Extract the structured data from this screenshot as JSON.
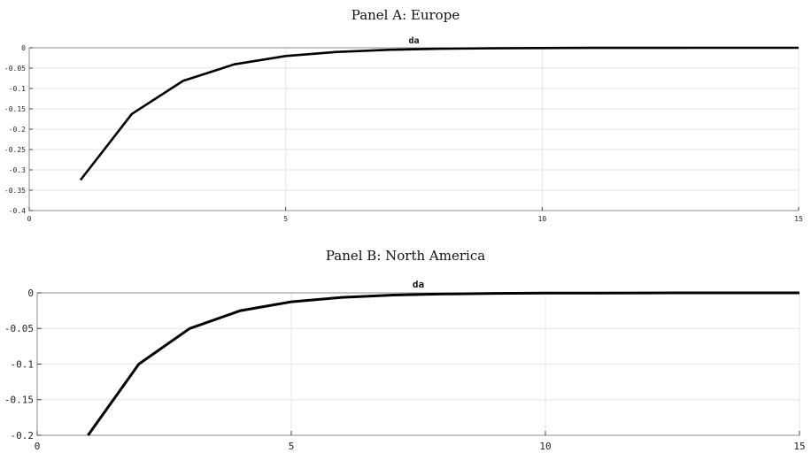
{
  "panels": [
    {
      "title": "Panel A: Europe"
    },
    {
      "title": "Panel B: North America"
    }
  ],
  "chart_data": [
    {
      "type": "line",
      "title": "da",
      "panel_label": "Panel A: Europe",
      "xlabel": "",
      "ylabel": "",
      "xlim": [
        0,
        15
      ],
      "ylim": [
        -0.4,
        0
      ],
      "xticks": [
        0,
        5,
        10,
        15
      ],
      "xtick_labels": [
        "0",
        "5",
        "10",
        "15"
      ],
      "yticks": [
        0,
        -0.05,
        -0.1,
        -0.15,
        -0.2,
        -0.25,
        -0.3,
        -0.35,
        -0.4
      ],
      "ytick_labels": [
        "0",
        "-0.05",
        "-0.1",
        "-0.15",
        "-0.2",
        "-0.25",
        "-0.3",
        "-0.35",
        "-0.4"
      ],
      "grid": true,
      "line_color": "#000000",
      "series": [
        {
          "x": [
            1,
            2,
            3,
            4,
            5,
            6,
            7,
            8,
            9,
            10,
            11,
            12,
            13,
            14,
            15
          ],
          "values": [
            -0.325,
            -0.1625,
            -0.0813,
            -0.0406,
            -0.0203,
            -0.0102,
            -0.0051,
            -0.0025,
            -0.0013,
            -0.0006,
            -0.0003,
            -0.0002,
            -0.0001,
            0.0,
            0.0
          ]
        }
      ]
    },
    {
      "type": "line",
      "title": "da",
      "panel_label": "Panel B: North America",
      "xlabel": "",
      "ylabel": "",
      "xlim": [
        0,
        15
      ],
      "ylim": [
        -0.2,
        0
      ],
      "xticks": [
        0,
        5,
        10,
        15
      ],
      "xtick_labels": [
        "0",
        "5",
        "10",
        "15"
      ],
      "yticks": [
        0,
        -0.05,
        -0.1,
        -0.15,
        -0.2
      ],
      "ytick_labels": [
        "0",
        "-0.05",
        "-0.1",
        "-0.15",
        "-0.2"
      ],
      "grid": true,
      "line_color": "#000000",
      "series": [
        {
          "x": [
            1,
            2,
            3,
            4,
            5,
            6,
            7,
            8,
            9,
            10,
            11,
            12,
            13,
            14,
            15
          ],
          "values": [
            -0.2,
            -0.1,
            -0.05,
            -0.025,
            -0.0125,
            -0.0063,
            -0.0031,
            -0.0016,
            -0.0008,
            -0.0004,
            -0.0002,
            -0.0001,
            0.0,
            0.0,
            0.0
          ]
        }
      ]
    }
  ]
}
